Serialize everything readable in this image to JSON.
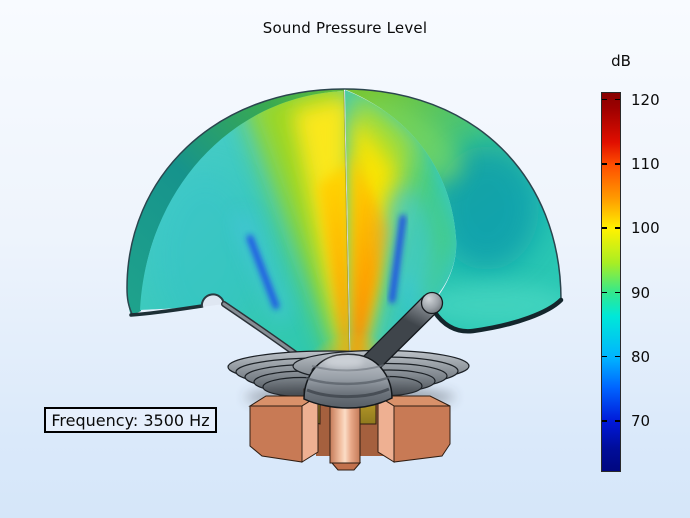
{
  "title": "Sound Pressure Level",
  "colorbar": {
    "unit_label": "dB",
    "ticks": [
      "120",
      "110",
      "100",
      "90",
      "80",
      "70"
    ],
    "tick_top_percent_at_120": 2.1,
    "tick_top_percent_at_70": 86.6,
    "colormap_stops": [
      "#870000 0%",
      "#9d0000 4%",
      "#e00e00 13%",
      "#ff4e00 19%",
      "#ff9c00 28%",
      "#fff200 36%",
      "#a8ee24 45%",
      "#30e890 53%",
      "#00e8d8 59%",
      "#00b4ff 70%",
      "#0064ff 78%",
      "#0018d8 87%",
      "#000d9a 94%",
      "#000780 100%"
    ]
  },
  "annotation_box": {
    "label": "Frequency: 3500 Hz"
  },
  "chart_data": {
    "type": "3d-surface",
    "title": "Sound Pressure Level",
    "color_unit": "dB",
    "color_ticks": [
      120,
      110,
      100,
      90,
      80,
      70
    ],
    "colormap": "rainbow",
    "annotation": "Frequency: 3500 Hz",
    "depicted_components": [
      "hemispherical-radiation-dome-surface",
      "cutaway-pressure-field-section",
      "pressure-node-streaks",
      "waveguide-fins",
      "dome-diaphragm",
      "magnet-assembly"
    ]
  }
}
